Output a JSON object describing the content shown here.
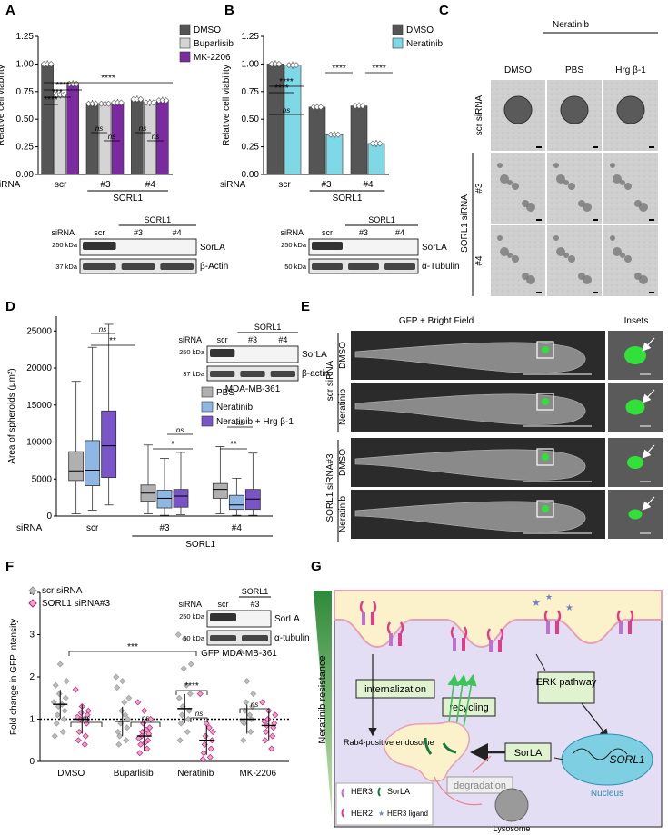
{
  "panels": {
    "A": "A",
    "B": "B",
    "C": "C",
    "D": "D",
    "E": "E",
    "F": "F",
    "G": "G"
  },
  "panelA": {
    "chart_data": {
      "type": "bar",
      "categories": [
        "scr",
        "#3",
        "#4"
      ],
      "series": [
        {
          "name": "DMSO",
          "values": [
            1.0,
            0.64,
            0.68
          ],
          "color": "#555555"
        },
        {
          "name": "Buparlisib",
          "values": [
            0.72,
            0.64,
            0.65
          ],
          "color": "#d4d4d4"
        },
        {
          "name": "MK-2206",
          "values": [
            0.82,
            0.65,
            0.67
          ],
          "color": "#7b2aa1"
        }
      ],
      "ylabel": "Relative cell viability",
      "ylim": [
        0,
        1.25
      ],
      "yticks": [
        "0.00",
        "0.25",
        "0.50",
        "0.75",
        "1.00",
        "1.25"
      ],
      "siRNA_label": "siRNA",
      "group_label": "SORL1",
      "sig": [
        "****",
        "***",
        "****",
        "****",
        "ns",
        "ns",
        "ns",
        "ns"
      ]
    },
    "blot": {
      "siRNA_label": "siRNA",
      "group": "SORL1",
      "lanes": [
        "scr",
        "#3",
        "#4"
      ],
      "kda_top": "250 kDa",
      "kda_bottom": "37 kDa",
      "protein_top": "SorLA",
      "protein_bottom": "β-Actin"
    }
  },
  "panelB": {
    "chart_data": {
      "type": "bar",
      "categories": [
        "scr",
        "#3",
        "#4"
      ],
      "series": [
        {
          "name": "DMSO",
          "values": [
            1.0,
            0.61,
            0.62
          ],
          "color": "#555555"
        },
        {
          "name": "Neratinib",
          "values": [
            0.99,
            0.36,
            0.28
          ],
          "color": "#7fd8e6"
        }
      ],
      "ylabel": "Relative cell viability",
      "ylim": [
        0,
        1.25
      ],
      "yticks": [
        "0.00",
        "0.25",
        "0.50",
        "0.75",
        "1.00",
        "1.25"
      ],
      "siRNA_label": "siRNA",
      "group_label": "SORL1",
      "sig": [
        "****",
        "****",
        "ns",
        "****",
        "****"
      ]
    },
    "blot": {
      "siRNA_label": "siRNA",
      "group": "SORL1",
      "lanes": [
        "scr",
        "#3",
        "#4"
      ],
      "kda_top": "250 kDa",
      "kda_bottom": "50 kDa",
      "protein_top": "SorLA",
      "protein_bottom": "α-Tubulin"
    }
  },
  "panelC": {
    "top_label": "Neratinib",
    "columns": [
      "DMSO",
      "PBS",
      "Hrg β-1"
    ],
    "rows": [
      "scr siRNA",
      "#3",
      "#4"
    ],
    "row_group": "SORL1 siRNA"
  },
  "panelD": {
    "chart_data": {
      "type": "box",
      "categories": [
        "scr",
        "#3",
        "#4"
      ],
      "series": [
        {
          "name": "PBS",
          "color": "#b0b0b0",
          "boxes": [
            [
              300,
              4800,
              6100,
              8700,
              18200
            ],
            [
              300,
              2000,
              3100,
              4200,
              9600
            ],
            [
              300,
              2400,
              3600,
              4400,
              9400
            ]
          ]
        },
        {
          "name": "Neratinib",
          "color": "#8fb7e4",
          "boxes": [
            [
              800,
              4100,
              6200,
              10200,
              22800
            ],
            [
              100,
              1100,
              2400,
              3500,
              7800
            ],
            [
              100,
              900,
              1500,
              2800,
              5100
            ]
          ]
        },
        {
          "name": "Neratinib + Hrg β-1",
          "color": "#7a55c8",
          "boxes": [
            [
              1500,
              5200,
              9500,
              14200,
              25900
            ],
            [
              200,
              1200,
              2700,
              3600,
              8600
            ],
            [
              100,
              900,
              2300,
              3600,
              8500
            ]
          ]
        }
      ],
      "ylabel": "Area of spheroids (μm²)",
      "ylim": [
        0,
        27000
      ],
      "yticks": [
        "0",
        "5000",
        "10000",
        "15000",
        "20000",
        "25000"
      ],
      "siRNA_label": "siRNA",
      "group_label": "SORL1",
      "sig": [
        "**",
        "ns",
        "ns",
        "*",
        "ns",
        "**"
      ]
    },
    "blot": {
      "siRNA_label": "siRNA",
      "group": "SORL1",
      "lanes": [
        "scr",
        "#3",
        "#4"
      ],
      "kda_top": "250 kDa",
      "kda_bottom": "37 kDa",
      "protein_top": "SorLA",
      "protein_bottom": "β-actin",
      "cell_line": "MDA-MB-361"
    }
  },
  "panelE": {
    "header_main": "GFP  + Bright Field",
    "header_insets": "Insets",
    "rows": [
      "DMSO",
      "Neratinib",
      "DMSO",
      "Neratinib"
    ],
    "groups": [
      "scr siRNA",
      "SORL1 siRNA#3"
    ]
  },
  "panelF": {
    "chart_data": {
      "type": "scatter",
      "categories": [
        "DMSO",
        "Buparlisib",
        "Neratinib",
        "MK-2206"
      ],
      "series": [
        {
          "name": "scr siRNA",
          "color": "#9a9a9a",
          "points": [
            [
              1.4,
              2.3,
              1.9,
              1.6,
              1.5,
              1.3,
              1.2,
              1.1,
              1.0,
              0.9,
              0.7,
              1.8,
              1.35,
              0.6
            ],
            [
              2.0,
              1.9,
              1.5,
              1.2,
              1.0,
              0.9,
              0.8,
              0.6,
              0.5,
              0.4,
              1.1,
              0.7,
              1.4,
              1.75
            ],
            [
              3.0,
              2.9,
              2.3,
              2.2,
              1.6,
              1.3,
              1.2,
              1.1,
              1.0,
              0.9,
              0.7,
              0.5,
              1.8,
              1.5
            ],
            [
              2.6,
              1.9,
              1.6,
              1.4,
              1.3,
              1.2,
              1.0,
              0.9,
              0.7,
              0.5,
              1.1,
              0.95
            ]
          ],
          "medians": [
            1.35,
            0.95,
            1.25,
            1.0
          ]
        },
        {
          "name": "SORL1 siRNA#3",
          "color": "#c21e7a",
          "points": [
            [
              1.7,
              1.3,
              1.2,
              1.15,
              1.1,
              1.0,
              0.9,
              0.7,
              0.6,
              0.5,
              0.4,
              1.05
            ],
            [
              1.4,
              1.2,
              1.0,
              0.9,
              0.8,
              0.7,
              0.65,
              0.6,
              0.5,
              0.4,
              0.3,
              0.2,
              0.75,
              0.55,
              0.45
            ],
            [
              1.6,
              0.9,
              0.7,
              0.6,
              0.5,
              0.4,
              0.3,
              0.2,
              0.1,
              0.05,
              0.8
            ],
            [
              1.4,
              1.2,
              1.1,
              1.0,
              0.9,
              0.85,
              0.8,
              0.7,
              0.6,
              0.5,
              0.3,
              0.95
            ]
          ],
          "medians": [
            1.0,
            0.6,
            0.5,
            0.85
          ]
        }
      ],
      "ylabel": "Fold change in GFP intensity",
      "ylim": [
        0,
        4
      ],
      "yticks": [
        "0",
        "1",
        "2",
        "3",
        "4"
      ],
      "reference_line": 1,
      "sig": [
        "***",
        "****",
        "ns",
        "ns",
        "ns",
        "ns"
      ]
    },
    "blot": {
      "siRNA_label": "siRNA",
      "group": "SORL1",
      "lanes": [
        "scr",
        "#3"
      ],
      "kda_top": "250 kDa",
      "kda_bottom": "50 kDa",
      "protein_top": "SorLA",
      "protein_bottom": "α-tubulin",
      "cell_line": "GFP MDA-MB-361"
    }
  },
  "panelG": {
    "side_label": "Neratinib resistance",
    "internalization": "internalization",
    "recycling": "recycling",
    "erk": "ERK pathway",
    "sorla_box": "SorLA",
    "endosome": "Rab4-positive endosome",
    "degradation": "degradation",
    "nucleus": "Nucleus",
    "gene": "SORL1",
    "lysosome": "Lysosome",
    "legend": {
      "her3": "HER3",
      "her2": "HER2",
      "sorla": "SorLA",
      "ligand": "HER3 ligand"
    }
  }
}
